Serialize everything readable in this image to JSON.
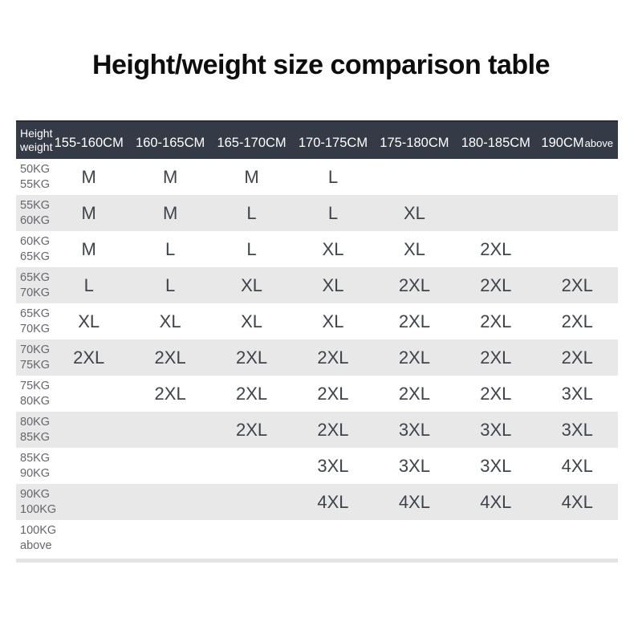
{
  "title": "Height/weight size comparison table",
  "table": {
    "corner": {
      "line1": "Height",
      "line2": "weight"
    },
    "columns": [
      "155-160CM",
      "160-165CM",
      "165-170CM",
      "170-175CM",
      "175-180CM",
      "180-185CM",
      "190CM"
    ],
    "last_column_suffix": "above",
    "rows": [
      {
        "weight": [
          "50KG",
          "55KG"
        ],
        "sizes": [
          "M",
          "M",
          "M",
          "L",
          "",
          "",
          ""
        ]
      },
      {
        "weight": [
          "55KG",
          "60KG"
        ],
        "sizes": [
          "M",
          "M",
          "L",
          "L",
          "XL",
          "",
          ""
        ]
      },
      {
        "weight": [
          "60KG",
          "65KG"
        ],
        "sizes": [
          "M",
          "L",
          "L",
          "XL",
          "XL",
          "2XL",
          ""
        ]
      },
      {
        "weight": [
          "65KG",
          "70KG"
        ],
        "sizes": [
          "L",
          "L",
          "XL",
          "XL",
          "2XL",
          "2XL",
          "2XL"
        ]
      },
      {
        "weight": [
          "65KG",
          "70KG"
        ],
        "sizes": [
          "XL",
          "XL",
          "XL",
          "XL",
          "2XL",
          "2XL",
          "2XL"
        ]
      },
      {
        "weight": [
          "70KG",
          "75KG"
        ],
        "sizes": [
          "2XL",
          "2XL",
          "2XL",
          "2XL",
          "2XL",
          "2XL",
          "2XL"
        ]
      },
      {
        "weight": [
          "75KG",
          "80KG"
        ],
        "sizes": [
          "",
          "2XL",
          "2XL",
          "2XL",
          "2XL",
          "2XL",
          "3XL"
        ]
      },
      {
        "weight": [
          "80KG",
          "85KG"
        ],
        "sizes": [
          "",
          "",
          "2XL",
          "2XL",
          "3XL",
          "3XL",
          "3XL"
        ]
      },
      {
        "weight": [
          "85KG",
          "90KG"
        ],
        "sizes": [
          "",
          "",
          "",
          "3XL",
          "3XL",
          "3XL",
          "4XL"
        ]
      },
      {
        "weight": [
          "90KG",
          "100KG"
        ],
        "sizes": [
          "",
          "",
          "",
          "4XL",
          "4XL",
          "4XL",
          "4XL"
        ]
      },
      {
        "weight": [
          "100KG",
          "above"
        ],
        "sizes": [
          "",
          "",
          "",
          "",
          "",
          "",
          ""
        ]
      }
    ]
  },
  "colors": {
    "header_bg": "#353b46",
    "header_text": "#ffffff",
    "row_alt_bg": "#e8e8e8",
    "label_text": "#63666d",
    "value_text": "#3e434c",
    "divider": "#e4e4e4",
    "title_text": "#0d0d0d"
  }
}
